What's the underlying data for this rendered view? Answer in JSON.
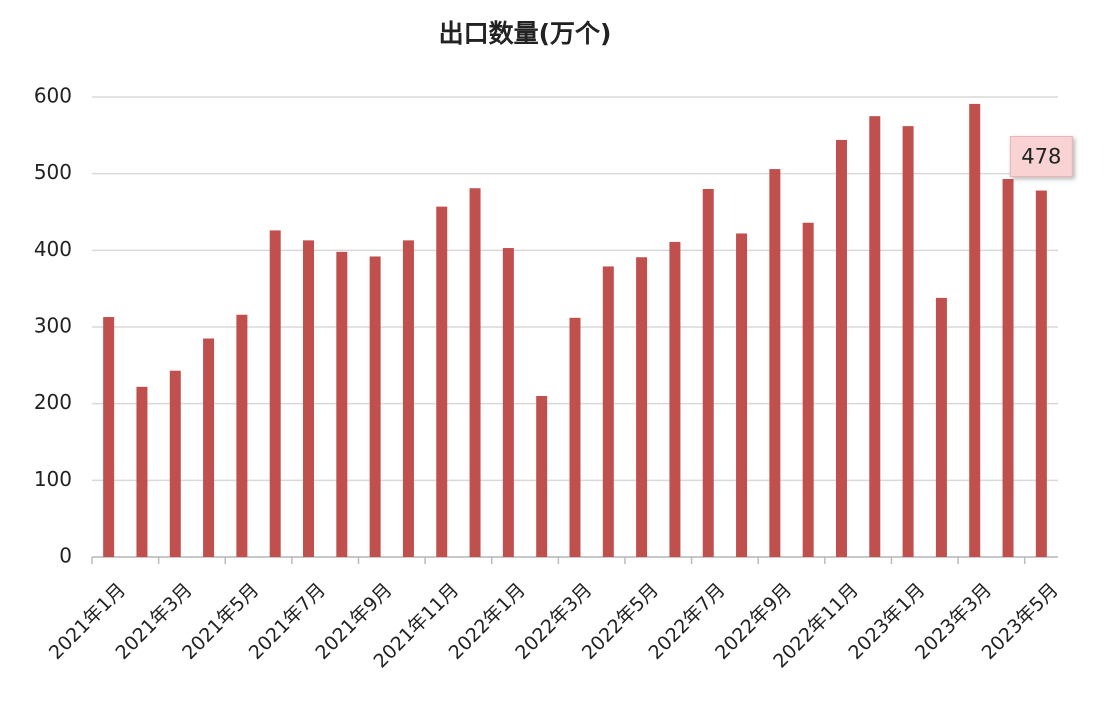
{
  "chart_data": {
    "type": "bar",
    "title": "出口数量(万个)",
    "categories": [
      "2021年1月",
      null,
      "2021年3月",
      null,
      "2021年5月",
      null,
      "2021年7月",
      null,
      "2021年9月",
      null,
      "2021年11月",
      null,
      "2022年1月",
      null,
      "2022年3月",
      null,
      "2022年5月",
      null,
      "2022年7月",
      null,
      "2022年9月",
      null,
      "2022年11月",
      null,
      "2023年1月",
      null,
      "2023年3月",
      null,
      "2023年5月"
    ],
    "values": [
      313,
      222,
      243,
      285,
      316,
      426,
      413,
      398,
      392,
      413,
      457,
      481,
      403,
      210,
      312,
      379,
      391,
      411,
      480,
      422,
      506,
      436,
      544,
      575,
      562,
      338,
      591,
      493,
      478
    ],
    "value_labels": [
      null,
      null,
      null,
      null,
      null,
      null,
      null,
      null,
      null,
      null,
      null,
      null,
      null,
      null,
      null,
      null,
      null,
      null,
      null,
      null,
      null,
      null,
      null,
      null,
      null,
      null,
      null,
      null,
      "478"
    ],
    "color": "#c0504d",
    "ylim": [
      0,
      600
    ],
    "yticks": [
      0,
      100,
      200,
      300,
      400,
      500,
      600
    ],
    "grid": true
  }
}
